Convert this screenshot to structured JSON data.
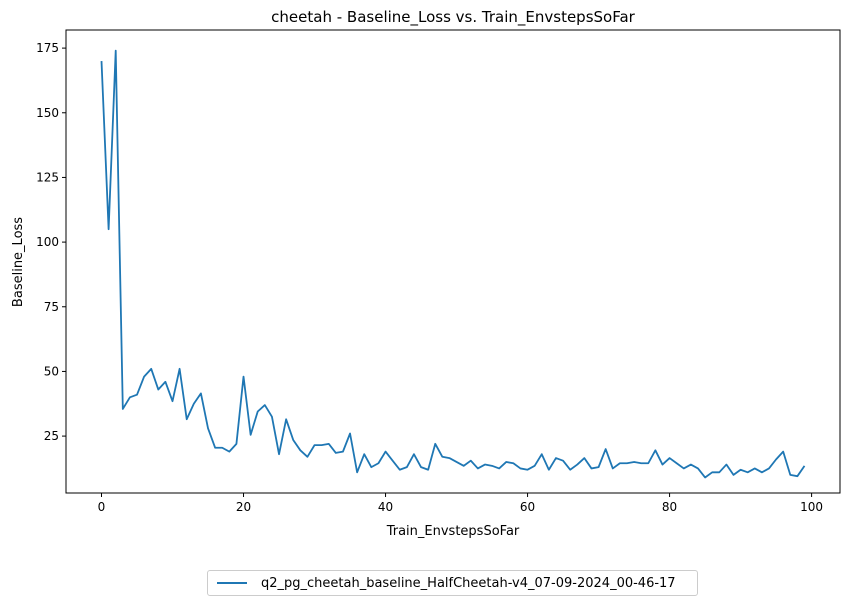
{
  "chart_data": {
    "type": "line",
    "title": "cheetah - Baseline_Loss vs. Train_EnvstepsSoFar",
    "xlabel": "Train_EnvstepsSoFar",
    "ylabel": "Baseline_Loss",
    "xlim": [
      -5,
      104
    ],
    "ylim": [
      3,
      182
    ],
    "xticks": [
      0,
      20,
      40,
      60,
      80,
      100
    ],
    "yticks": [
      25,
      50,
      75,
      100,
      125,
      150,
      175
    ],
    "grid": false,
    "legend_position": "bottom-center",
    "series": [
      {
        "name": "q2_pg_cheetah_baseline_HalfCheetah-v4_07-09-2024_00-46-17",
        "color": "#1f77b4",
        "x": [
          0,
          1,
          2,
          3,
          4,
          5,
          6,
          7,
          8,
          9,
          10,
          11,
          12,
          13,
          14,
          15,
          16,
          17,
          18,
          19,
          20,
          21,
          22,
          23,
          24,
          25,
          26,
          27,
          28,
          29,
          30,
          31,
          32,
          33,
          34,
          35,
          36,
          37,
          38,
          39,
          40,
          41,
          42,
          43,
          44,
          45,
          46,
          47,
          48,
          49,
          50,
          51,
          52,
          53,
          54,
          55,
          56,
          57,
          58,
          59,
          60,
          61,
          62,
          63,
          64,
          65,
          66,
          67,
          68,
          69,
          70,
          71,
          72,
          73,
          74,
          75,
          76,
          77,
          78,
          79,
          80,
          81,
          82,
          83,
          84,
          85,
          86,
          87,
          88,
          89,
          90,
          91,
          92,
          93,
          94,
          95,
          96,
          97,
          98,
          99
        ],
        "y": [
          170,
          105,
          174,
          35.5,
          40,
          41,
          48,
          51,
          43,
          46,
          38.5,
          51,
          31.5,
          37.5,
          41.5,
          28,
          20.5,
          20.5,
          19,
          22,
          48,
          25.5,
          34.5,
          37,
          32.5,
          18,
          31.5,
          23.5,
          19.5,
          17,
          21.5,
          21.5,
          22,
          18.5,
          19,
          26,
          11,
          18,
          13,
          14.5,
          19,
          15.5,
          12,
          13,
          18,
          13,
          12,
          22,
          17,
          16.5,
          15,
          13.5,
          15.5,
          12.5,
          14,
          13.5,
          12.5,
          15,
          14.5,
          12.5,
          12,
          13.5,
          18,
          12,
          16.5,
          15.5,
          12,
          14,
          16.5,
          12.5,
          13,
          20,
          12.5,
          14.5,
          14.5,
          15,
          14.5,
          14.5,
          19.5,
          14,
          16.5,
          14.5,
          12.5,
          14,
          12.5,
          9,
          11,
          11,
          14,
          10,
          12,
          11,
          12.5,
          11,
          12.5,
          16,
          19,
          10,
          9.5,
          13.5
        ]
      }
    ]
  }
}
